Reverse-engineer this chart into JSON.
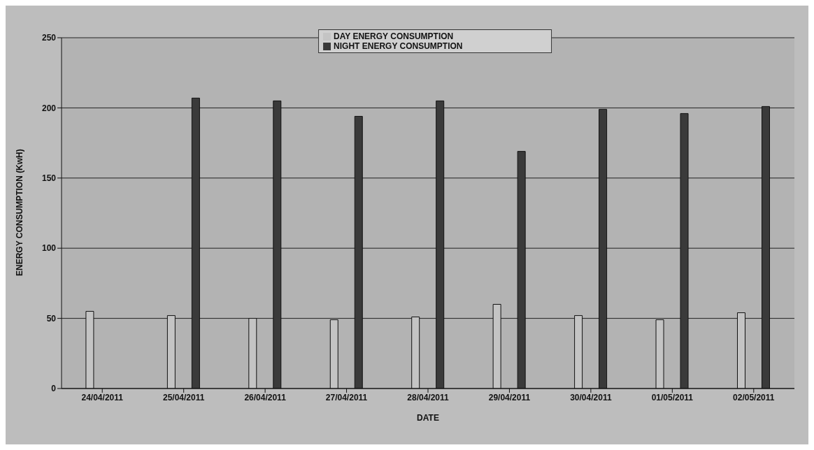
{
  "chart_data": {
    "type": "bar",
    "xlabel": "DATE",
    "ylabel": "ENERGY CONSUMPTION (KwH)",
    "categories": [
      "24/04/2011",
      "25/04/2011",
      "26/04/2011",
      "27/04/2011",
      "28/04/2011",
      "29/04/2011",
      "30/04/2011",
      "01/05/2011",
      "02/05/2011"
    ],
    "series": [
      {
        "name": "DAY ENERGY CONSUMPTION",
        "color": "#c4c4c4",
        "values": [
          55,
          52,
          50,
          49,
          51,
          60,
          52,
          49,
          54
        ]
      },
      {
        "name": "NIGHT ENERGY CONSUMPTION",
        "color": "#3a3a3a",
        "values": [
          null,
          207,
          205,
          194,
          205,
          169,
          199,
          196,
          201
        ]
      }
    ],
    "ylim": [
      0,
      250
    ],
    "yticks": [
      0,
      50,
      100,
      150,
      200,
      250
    ],
    "grid": "y",
    "legend": "top"
  }
}
